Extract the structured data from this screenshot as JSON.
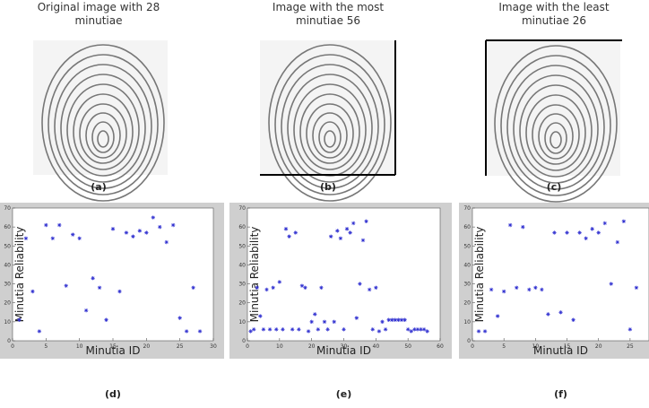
{
  "images": [
    {
      "title": [
        "Original image with 28",
        "minutiae"
      ],
      "caption": "(a)"
    },
    {
      "title": [
        "Image with the most",
        "minutiae 56"
      ],
      "caption": "(b)"
    },
    {
      "title": [
        "Image with the least",
        "minutiae 26"
      ],
      "caption": "(c)"
    }
  ],
  "chart_data": [
    {
      "type": "scatter",
      "caption": "(d)",
      "x_label": "Minutia ID",
      "y_label": "Minutia Reliability",
      "color": "#3030d0",
      "x": [
        1,
        2,
        3,
        4,
        5,
        6,
        7,
        8,
        9,
        10,
        11,
        12,
        13,
        14,
        15,
        16,
        17,
        18,
        19,
        20,
        21,
        22,
        23,
        24,
        25,
        26,
        27,
        28
      ],
      "values": [
        11,
        54,
        26,
        5,
        61,
        54,
        61,
        29,
        56,
        54,
        16,
        33,
        28,
        11,
        59,
        26,
        57,
        55,
        58,
        57,
        65,
        60,
        52,
        61,
        12,
        5,
        28,
        5
      ],
      "xlim": [
        0,
        30
      ],
      "ylim": [
        0,
        70
      ],
      "xticks": [
        0,
        5,
        10,
        15,
        20,
        25,
        30
      ],
      "yticks": [
        0,
        10,
        20,
        30,
        40,
        50,
        60,
        70
      ]
    },
    {
      "type": "scatter",
      "caption": "(e)",
      "x_label": "Minutia ID",
      "y_label": "Minutia Reliability",
      "color": "#3030d0",
      "x": [
        1,
        2,
        3,
        4,
        5,
        6,
        7,
        8,
        9,
        10,
        11,
        12,
        13,
        14,
        15,
        16,
        17,
        18,
        19,
        20,
        21,
        22,
        23,
        24,
        25,
        26,
        27,
        28,
        29,
        30,
        31,
        32,
        33,
        34,
        35,
        36,
        37,
        38,
        39,
        40,
        41,
        42,
        43,
        44,
        45,
        46,
        47,
        48,
        49,
        50,
        51,
        52,
        53,
        54,
        55,
        56
      ],
      "values": [
        5,
        6,
        28,
        13,
        6,
        27,
        6,
        28,
        6,
        31,
        6,
        59,
        55,
        6,
        57,
        6,
        29,
        28,
        5,
        10,
        14,
        6,
        28,
        10,
        6,
        55,
        10,
        58,
        54,
        6,
        59,
        57,
        62,
        12,
        30,
        53,
        63,
        27,
        6,
        28,
        5,
        10,
        6,
        11,
        11,
        11,
        11,
        11,
        11,
        6,
        5,
        6,
        6,
        6,
        6,
        5
      ],
      "xlim": [
        0,
        60
      ],
      "ylim": [
        0,
        70
      ],
      "xticks": [
        0,
        10,
        20,
        30,
        40,
        50,
        60
      ],
      "yticks": [
        0,
        10,
        20,
        30,
        40,
        50,
        60,
        70
      ]
    },
    {
      "type": "scatter",
      "caption": "(f)",
      "x_label": "Minutia ID",
      "y_label": "Minutia Reliability",
      "color": "#3030d0",
      "x": [
        1,
        2,
        3,
        4,
        5,
        6,
        7,
        8,
        9,
        10,
        11,
        12,
        13,
        14,
        15,
        16,
        17,
        18,
        19,
        20,
        21,
        22,
        23,
        24,
        25,
        26
      ],
      "values": [
        5,
        5,
        27,
        13,
        26,
        61,
        28,
        60,
        27,
        28,
        27,
        14,
        57,
        15,
        57,
        11,
        57,
        54,
        59,
        57,
        62,
        30,
        52,
        63,
        6,
        28
      ],
      "xlim": [
        0,
        28
      ],
      "ylim": [
        0,
        70
      ],
      "xticks": [
        0,
        5,
        10,
        15,
        20,
        25
      ],
      "yticks": [
        0,
        10,
        20,
        30,
        40,
        50,
        60,
        70
      ]
    }
  ]
}
